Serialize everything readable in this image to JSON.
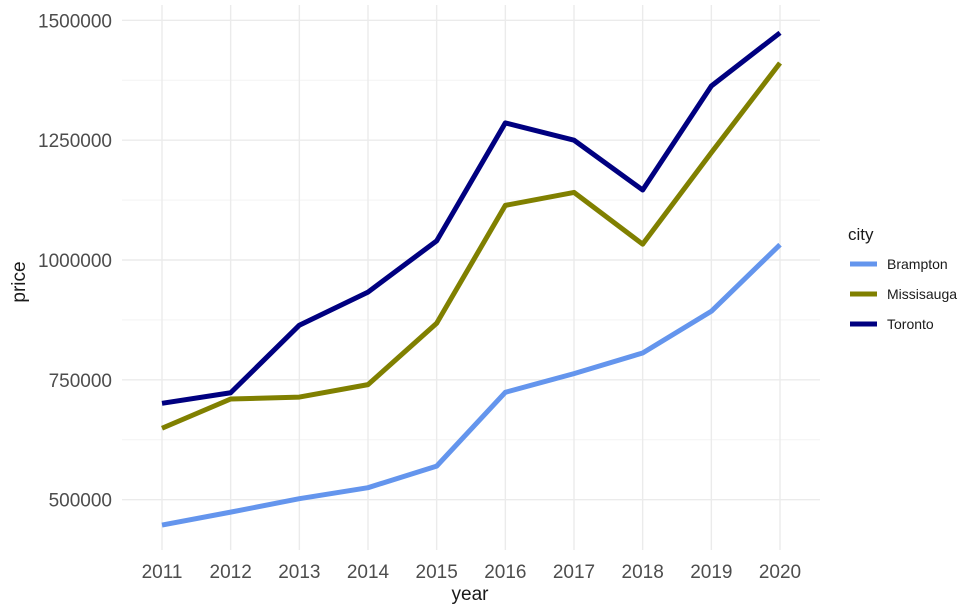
{
  "chart_data": {
    "type": "line",
    "xlabel": "year",
    "ylabel": "price",
    "x": [
      2011,
      2012,
      2013,
      2014,
      2015,
      2016,
      2017,
      2018,
      2019,
      2020
    ],
    "x_tick_labels": [
      "2011",
      "2012",
      "2013",
      "2014",
      "2015",
      "2016",
      "2017",
      "2018",
      "2019",
      "2020"
    ],
    "y_ticks": [
      500000,
      750000,
      1000000,
      1250000,
      1500000
    ],
    "y_tick_labels": [
      "500000",
      "750000",
      "1000000",
      "1250000",
      "1500000"
    ],
    "ylim": [
      395000,
      1532000
    ],
    "grid": true,
    "legend": {
      "title": "city",
      "position": "right"
    },
    "series": [
      {
        "name": "Brampton",
        "color": "#6495ED",
        "values": [
          447000,
          474000,
          502000,
          525000,
          570000,
          724000,
          763000,
          806000,
          893000,
          1032000
        ]
      },
      {
        "name": "Missisauga",
        "color": "#808000",
        "values": [
          649000,
          710000,
          714000,
          740000,
          868000,
          1114000,
          1141000,
          1033000,
          1224000,
          1411000
        ]
      },
      {
        "name": "Toronto",
        "color": "#000080",
        "values": [
          701000,
          723000,
          864000,
          933000,
          1040000,
          1286000,
          1250000,
          1146000,
          1363000,
          1474000
        ]
      }
    ]
  }
}
